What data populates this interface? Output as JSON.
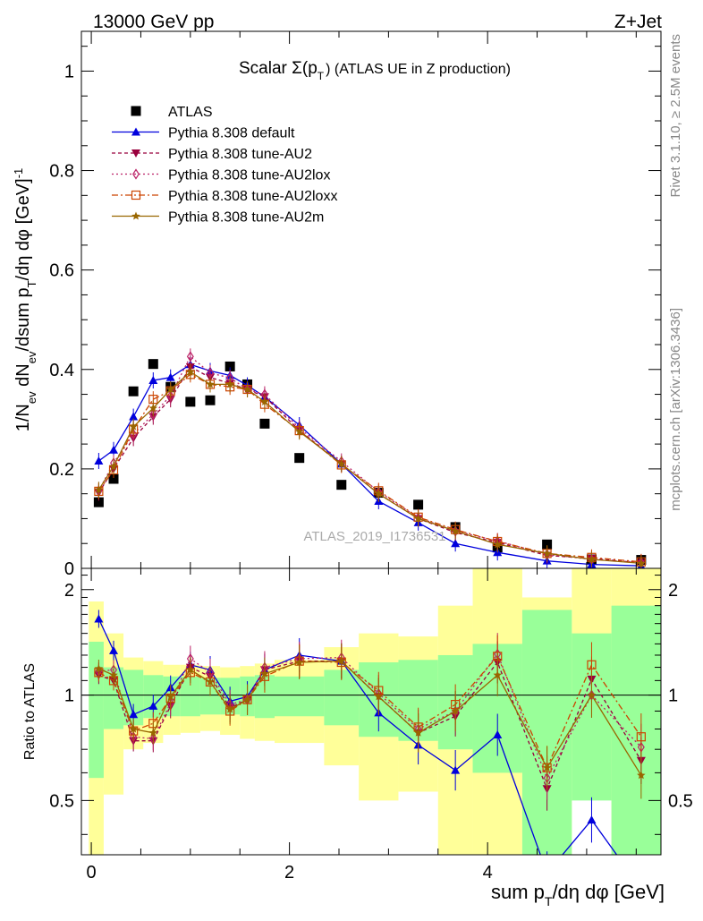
{
  "header": {
    "left": "13000 GeV pp",
    "right": "Z+Jet"
  },
  "side_labels": {
    "rivet": "Rivet 3.1.10, ≥ 2.5M events",
    "mcplots": "mcplots.cern.ch [arXiv:1306.3436]"
  },
  "watermark": "ATLAS_2019_I1736531",
  "chart_data": [
    {
      "type": "line",
      "panel": "main",
      "title": "Scalar Σ(p_T) (ATLAS UE in Z production)",
      "ylabel": "1/N_ev dN_ev/dsum p_T/dη dφ [GeV]^-1",
      "xlim": [
        -0.1,
        5.75
      ],
      "ylim": [
        0,
        1.08
      ],
      "yticks": [
        "0",
        "0.2",
        "0.4",
        "0.6",
        "0.8",
        "1"
      ],
      "x": [
        0.075,
        0.225,
        0.425,
        0.625,
        0.8,
        1.0,
        1.2,
        1.4,
        1.575,
        1.75,
        2.1,
        2.525,
        2.9,
        3.3,
        3.675,
        4.1,
        4.6,
        5.05,
        5.55
      ],
      "series": [
        {
          "name": "ATLAS",
          "color": "#000000",
          "marker": "square",
          "values": [
            0.133,
            0.18,
            0.356,
            0.411,
            0.365,
            0.335,
            0.338,
            0.406,
            0.37,
            0.291,
            0.222,
            0.168,
            0.152,
            0.128,
            0.083,
            0.042,
            0.048,
            0.018,
            0.017
          ]
        },
        {
          "name": "Pythia 8.308 default",
          "color": "#0000dd",
          "marker": "triangle-up",
          "dash": "",
          "values": [
            0.216,
            0.238,
            0.305,
            0.378,
            0.384,
            0.41,
            0.397,
            0.388,
            0.368,
            0.345,
            0.288,
            0.21,
            0.135,
            0.092,
            0.05,
            0.032,
            0.015,
            0.008,
            0.005
          ]
        },
        {
          "name": "Pythia 8.308 tune-AU2",
          "color": "#99003d",
          "marker": "triangle-down",
          "dash": "4,3",
          "values": [
            0.152,
            0.2,
            0.262,
            0.305,
            0.34,
            0.405,
            0.384,
            0.372,
            0.36,
            0.345,
            0.278,
            0.21,
            0.15,
            0.1,
            0.072,
            0.052,
            0.026,
            0.02,
            0.011
          ]
        },
        {
          "name": "Pythia 8.308 tune-AU2lox",
          "color": "#bb2266",
          "marker": "diamond-open",
          "dash": "2,3",
          "values": [
            0.156,
            0.212,
            0.27,
            0.31,
            0.347,
            0.426,
            0.393,
            0.383,
            0.36,
            0.35,
            0.282,
            0.215,
            0.154,
            0.102,
            0.075,
            0.055,
            0.028,
            0.018,
            0.012
          ]
        },
        {
          "name": "Pythia 8.308 tune-AU2loxx",
          "color": "#cc4400",
          "marker": "square-open",
          "dash": "7,3,2,3",
          "values": [
            0.155,
            0.198,
            0.28,
            0.34,
            0.357,
            0.39,
            0.37,
            0.365,
            0.36,
            0.33,
            0.277,
            0.208,
            0.156,
            0.103,
            0.078,
            0.054,
            0.03,
            0.022,
            0.013
          ]
        },
        {
          "name": "Pythia 8.308 tune-AU2m",
          "color": "#996600",
          "marker": "star",
          "dash": "",
          "values": [
            0.158,
            0.205,
            0.285,
            0.322,
            0.36,
            0.395,
            0.37,
            0.37,
            0.36,
            0.335,
            0.275,
            0.21,
            0.15,
            0.1,
            0.075,
            0.048,
            0.03,
            0.018,
            0.01
          ]
        }
      ]
    },
    {
      "type": "line",
      "panel": "ratio",
      "ylabel": "Ratio to ATLAS",
      "xlabel": "sum p_T/dη dφ [GeV]",
      "xlim": [
        -0.1,
        5.75
      ],
      "ylim": [
        0.35,
        2.3
      ],
      "yticks": [
        "0.5",
        "1",
        "2"
      ],
      "xticks": [
        "0",
        "2",
        "4"
      ],
      "bands": {
        "edges": [
          -0.025,
          0.125,
          0.325,
          0.525,
          0.725,
          0.9,
          1.1,
          1.3,
          1.5,
          1.65,
          1.85,
          2.35,
          2.7,
          3.1,
          3.5,
          3.85,
          4.35,
          4.85,
          5.25,
          5.85
        ],
        "green_lo": [
          0.58,
          0.8,
          0.82,
          0.86,
          0.87,
          0.87,
          0.88,
          0.88,
          0.87,
          0.86,
          0.87,
          0.82,
          0.76,
          0.74,
          0.7,
          0.6,
          0.25,
          0.5,
          0.3
        ],
        "green_hi": [
          1.42,
          1.2,
          1.18,
          1.14,
          1.13,
          1.13,
          1.12,
          1.12,
          1.13,
          1.14,
          1.13,
          1.18,
          1.24,
          1.26,
          1.3,
          1.4,
          1.75,
          1.5,
          1.8
        ],
        "yellow_lo": [
          0.35,
          0.52,
          0.7,
          0.73,
          0.77,
          0.78,
          0.79,
          0.77,
          0.75,
          0.74,
          0.73,
          0.63,
          0.5,
          0.53,
          0.35,
          0.35,
          0.35,
          0.68,
          0.35
        ],
        "yellow_hi": [
          1.85,
          1.5,
          1.28,
          1.25,
          1.22,
          1.22,
          1.21,
          1.2,
          1.21,
          1.23,
          1.26,
          1.37,
          1.5,
          1.47,
          1.8,
          2.3,
          1.9,
          2.3,
          2.3
        ]
      },
      "series": [
        {
          "name": "Pythia 8.308 default",
          "color": "#0000dd",
          "marker": "triangle-up",
          "dash": "",
          "values": [
            1.65,
            1.34,
            0.88,
            0.93,
            1.05,
            1.22,
            1.18,
            0.96,
            0.99,
            1.18,
            1.3,
            1.25,
            0.89,
            0.72,
            0.61,
            0.77,
            0.31,
            0.44,
            0.28
          ]
        },
        {
          "name": "Pythia 8.308 tune-AU2",
          "color": "#99003d",
          "marker": "triangle-down",
          "dash": "4,3",
          "values": [
            1.14,
            1.1,
            0.74,
            0.74,
            0.93,
            1.2,
            1.13,
            0.92,
            0.97,
            1.18,
            1.25,
            1.25,
            0.99,
            0.78,
            0.87,
            1.24,
            0.54,
            1.11,
            0.65
          ]
        },
        {
          "name": "Pythia 8.308 tune-AU2lox",
          "color": "#bb2266",
          "marker": "diamond-open",
          "dash": "2,3",
          "values": [
            1.17,
            1.18,
            0.76,
            0.75,
            0.95,
            1.27,
            1.16,
            0.94,
            0.97,
            1.2,
            1.27,
            1.28,
            1.01,
            0.8,
            0.9,
            1.31,
            0.58,
            1.0,
            0.71
          ]
        },
        {
          "name": "Pythia 8.308 tune-AU2loxx",
          "color": "#cc4400",
          "marker": "square-open",
          "dash": "7,3,2,3",
          "values": [
            1.16,
            1.1,
            0.79,
            0.83,
            0.98,
            1.16,
            1.09,
            0.9,
            0.97,
            1.13,
            1.25,
            1.24,
            1.03,
            0.81,
            0.94,
            1.29,
            0.62,
            1.22,
            0.76
          ]
        },
        {
          "name": "Pythia 8.308 tune-AU2m",
          "color": "#996600",
          "marker": "star",
          "dash": "",
          "values": [
            1.19,
            1.14,
            0.8,
            0.78,
            0.99,
            1.18,
            1.09,
            0.91,
            0.97,
            1.15,
            1.24,
            1.25,
            0.99,
            0.78,
            0.9,
            1.14,
            0.62,
            1.0,
            0.59
          ]
        }
      ]
    }
  ]
}
